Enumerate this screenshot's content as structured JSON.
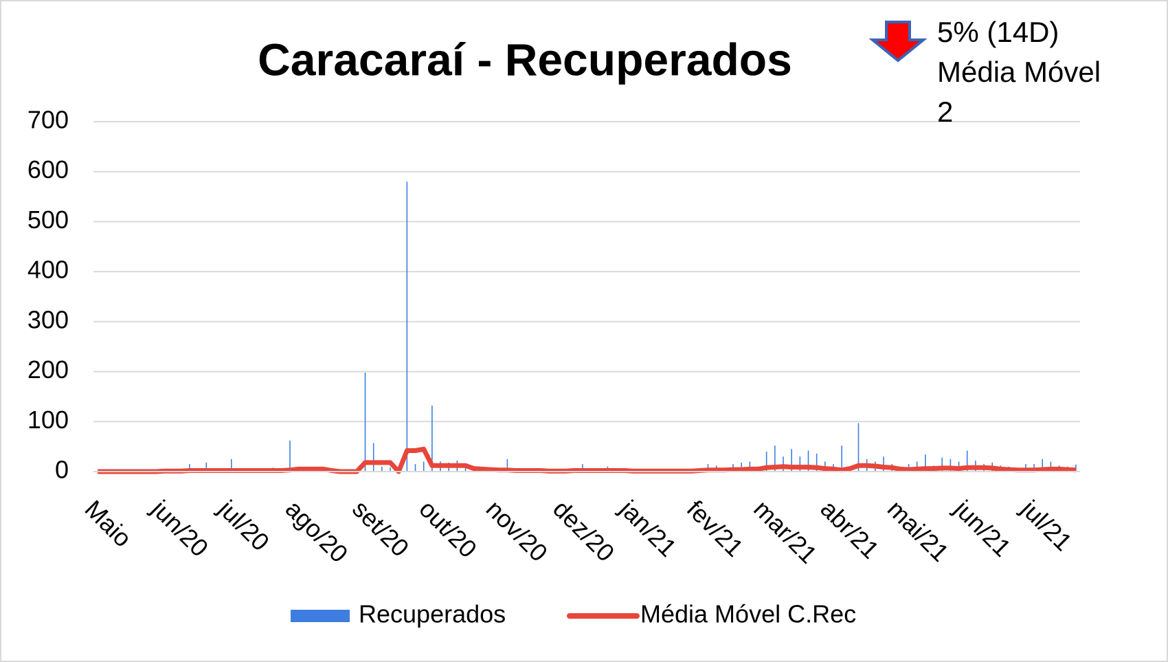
{
  "chart_data": {
    "type": "bar-line",
    "title": "Caracaraí - Recuperados",
    "annotation": [
      "5% (14D)",
      "Média Móvel",
      "2"
    ],
    "categories": [
      "Maio",
      null,
      null,
      null,
      null,
      null,
      null,
      null,
      "jun/20",
      null,
      null,
      null,
      null,
      null,
      null,
      null,
      "jul/20",
      null,
      null,
      null,
      null,
      null,
      null,
      null,
      "ago/20",
      null,
      null,
      null,
      null,
      null,
      null,
      null,
      "set/20",
      null,
      null,
      null,
      null,
      null,
      null,
      null,
      "out/20",
      null,
      null,
      null,
      null,
      null,
      null,
      null,
      "nov/20",
      null,
      null,
      null,
      null,
      null,
      null,
      null,
      "dez/20",
      null,
      null,
      null,
      null,
      null,
      null,
      null,
      "jan/21",
      null,
      null,
      null,
      null,
      null,
      null,
      null,
      "fev/21",
      null,
      null,
      null,
      null,
      null,
      null,
      null,
      "mar/21",
      null,
      null,
      null,
      null,
      null,
      null,
      null,
      "abr/21",
      null,
      null,
      null,
      null,
      null,
      null,
      null,
      "mai/21",
      null,
      null,
      null,
      null,
      null,
      null,
      null,
      "jun/21",
      null,
      null,
      null,
      null,
      null,
      null,
      null,
      "jul/21",
      null,
      null,
      null,
      null,
      null
    ],
    "series": [
      {
        "name": "Recuperados",
        "type": "bar",
        "color": "#3d7ee0",
        "values": [
          0,
          0,
          1,
          0,
          2,
          0,
          1,
          0,
          2,
          3,
          5,
          15,
          4,
          18,
          3,
          5,
          25,
          4,
          6,
          5,
          3,
          8,
          5,
          62,
          8,
          6,
          5,
          4,
          3,
          2,
          3,
          5,
          198,
          57,
          10,
          8,
          5,
          580,
          15,
          20,
          132,
          20,
          18,
          22,
          15,
          10,
          8,
          6,
          5,
          25,
          4,
          3,
          5,
          2,
          3,
          4,
          2,
          5,
          15,
          6,
          4,
          10,
          3,
          2,
          3,
          2,
          4,
          5,
          3,
          2,
          5,
          3,
          5,
          15,
          12,
          8,
          15,
          18,
          20,
          10,
          40,
          52,
          30,
          45,
          30,
          42,
          36,
          20,
          15,
          52,
          10,
          97,
          25,
          20,
          30,
          15,
          10,
          15,
          20,
          34,
          12,
          28,
          25,
          20,
          42,
          22,
          15,
          18,
          12,
          10,
          8,
          15,
          15,
          25,
          20,
          12,
          10,
          14
        ]
      },
      {
        "name": "Média Móvel C.Rec",
        "type": "line",
        "color": "#e8463a",
        "values": [
          0,
          0,
          0,
          0,
          0,
          0,
          0,
          0,
          1,
          1,
          1,
          2,
          2,
          2,
          2,
          2,
          2,
          2,
          2,
          2,
          2,
          2,
          2,
          3,
          5,
          5,
          5,
          5,
          2,
          0,
          0,
          0,
          18,
          18,
          18,
          18,
          0,
          42,
          42,
          45,
          12,
          12,
          12,
          12,
          12,
          6,
          5,
          4,
          3,
          3,
          2,
          2,
          2,
          2,
          1,
          1,
          1,
          2,
          2,
          2,
          2,
          2,
          2,
          2,
          1,
          1,
          1,
          1,
          1,
          1,
          1,
          1,
          2,
          3,
          3,
          3,
          4,
          4,
          5,
          5,
          8,
          9,
          10,
          9,
          9,
          9,
          8,
          6,
          5,
          3,
          6,
          12,
          12,
          11,
          9,
          8,
          5,
          4,
          5,
          6,
          6,
          7,
          7,
          6,
          8,
          8,
          8,
          7,
          5,
          4,
          3,
          3,
          3,
          4,
          5,
          5,
          4,
          3
        ]
      }
    ],
    "ylim": [
      0,
      700
    ],
    "yticks": [
      0,
      100,
      200,
      300,
      400,
      500,
      600,
      700
    ],
    "grid": true,
    "legend": "bottom"
  }
}
